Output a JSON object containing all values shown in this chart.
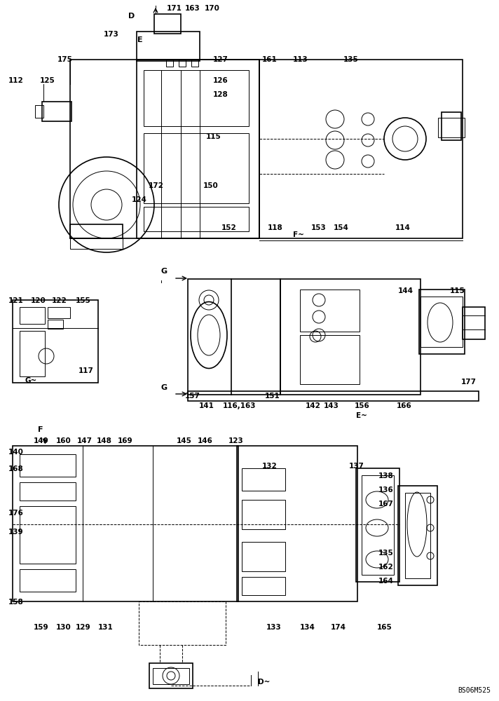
{
  "background_color": "#ffffff",
  "watermark": "BS06M525",
  "top_labels": [
    [
      "173",
      148,
      52
    ],
    [
      "171",
      238,
      15
    ],
    [
      "163",
      264,
      15
    ],
    [
      "170",
      292,
      15
    ],
    [
      "175",
      82,
      88
    ],
    [
      "127",
      304,
      88
    ],
    [
      "161",
      374,
      88
    ],
    [
      "113",
      418,
      88
    ],
    [
      "135",
      490,
      88
    ],
    [
      "112",
      12,
      118
    ],
    [
      "125",
      57,
      118
    ],
    [
      "126",
      304,
      118
    ],
    [
      "128",
      304,
      138
    ],
    [
      "115",
      294,
      198
    ],
    [
      "172",
      212,
      268
    ],
    [
      "124",
      188,
      288
    ],
    [
      "150",
      290,
      268
    ],
    [
      "152",
      316,
      328
    ],
    [
      "118",
      382,
      328
    ],
    [
      "153",
      444,
      328
    ],
    [
      "154",
      476,
      328
    ],
    [
      "114",
      564,
      328
    ]
  ],
  "mid_r_labels": [
    [
      "144",
      568,
      418
    ],
    [
      "115",
      642,
      418
    ],
    [
      "157",
      264,
      568
    ],
    [
      "151",
      378,
      568
    ],
    [
      "141",
      284,
      582
    ],
    [
      "116,163",
      318,
      582
    ],
    [
      "142",
      436,
      582
    ],
    [
      "143",
      462,
      582
    ],
    [
      "156",
      506,
      582
    ],
    [
      "166",
      566,
      582
    ],
    [
      "177",
      658,
      548
    ]
  ],
  "mid_l_labels": [
    [
      "121",
      12,
      432
    ],
    [
      "120",
      44,
      432
    ],
    [
      "122",
      74,
      432
    ],
    [
      "155",
      108,
      432
    ]
  ],
  "bot_labels": [
    [
      "140",
      12,
      648
    ],
    [
      "149",
      48,
      632
    ],
    [
      "160",
      80,
      632
    ],
    [
      "147",
      110,
      632
    ],
    [
      "148",
      138,
      632
    ],
    [
      "169",
      168,
      632
    ],
    [
      "145",
      252,
      632
    ],
    [
      "146",
      282,
      632
    ],
    [
      "123",
      326,
      632
    ],
    [
      "168",
      12,
      672
    ],
    [
      "132",
      374,
      668
    ],
    [
      "137",
      498,
      668
    ],
    [
      "138",
      540,
      682
    ],
    [
      "136",
      540,
      702
    ],
    [
      "167",
      540,
      722
    ],
    [
      "176",
      12,
      735
    ],
    [
      "139",
      12,
      762
    ],
    [
      "135",
      540,
      792
    ],
    [
      "162",
      540,
      812
    ],
    [
      "164",
      540,
      832
    ],
    [
      "158",
      12,
      862
    ],
    [
      "159",
      48,
      898
    ],
    [
      "130",
      80,
      898
    ],
    [
      "129",
      108,
      898
    ],
    [
      "131",
      140,
      898
    ],
    [
      "133",
      380,
      898
    ],
    [
      "134",
      428,
      898
    ],
    [
      "174",
      472,
      898
    ],
    [
      "165",
      538,
      898
    ]
  ]
}
